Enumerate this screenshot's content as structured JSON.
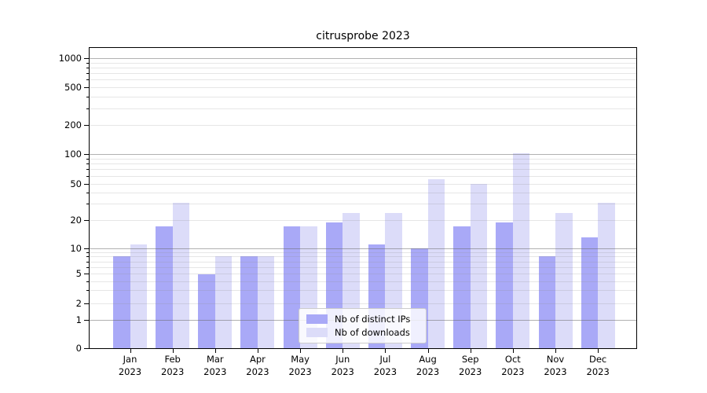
{
  "chart_data": {
    "type": "bar",
    "title": "citrusprobe 2023",
    "categories": [
      "Jan 2023",
      "Feb 2023",
      "Mar 2023",
      "Apr 2023",
      "May 2023",
      "Jun 2023",
      "Jul 2023",
      "Aug 2023",
      "Sep 2023",
      "Oct 2023",
      "Nov 2023",
      "Dec 2023"
    ],
    "x_tick_month": [
      "Jan",
      "Feb",
      "Mar",
      "Apr",
      "May",
      "Jun",
      "Jul",
      "Aug",
      "Sep",
      "Oct",
      "Nov",
      "Dec"
    ],
    "x_tick_year": "2023",
    "series": [
      {
        "name": "Nb of distinct IPs",
        "color": "#a9a9f7",
        "values": [
          8,
          17,
          5,
          8,
          17,
          19,
          11,
          10,
          17,
          19,
          8,
          13
        ]
      },
      {
        "name": "Nb of downloads",
        "color": "#dcdcf9",
        "values": [
          11,
          31,
          8,
          8,
          17,
          24,
          24,
          55,
          50,
          103,
          24,
          31
        ]
      }
    ],
    "y_axis": {
      "scale": "symlog",
      "tick_values": [
        0,
        1,
        2,
        5,
        10,
        20,
        50,
        100,
        200,
        500,
        1000
      ],
      "tick_labels": [
        "0",
        "1",
        "2",
        "5",
        "10",
        "20",
        "50",
        "100",
        "200",
        "500",
        "1000"
      ],
      "major_gridlines": [
        1,
        10,
        100,
        1000
      ],
      "minor_gridlines": [
        2,
        3,
        4,
        5,
        6,
        7,
        8,
        9,
        20,
        30,
        40,
        50,
        60,
        70,
        80,
        90,
        200,
        300,
        400,
        500,
        600,
        700,
        800,
        900
      ],
      "anchors": [
        [
          0,
          0
        ],
        [
          1,
          0.0938
        ],
        [
          2,
          0.1497
        ],
        [
          5,
          0.2474
        ],
        [
          10,
          0.3333
        ],
        [
          20,
          0.4271
        ],
        [
          50,
          0.5482
        ],
        [
          100,
          0.6458
        ],
        [
          200,
          0.7422
        ],
        [
          500,
          0.8698
        ],
        [
          1000,
          0.9654
        ]
      ]
    },
    "ylim": [
      0,
      1260
    ],
    "grid": true,
    "legend_position": "lower center",
    "background": "#ffffff"
  }
}
